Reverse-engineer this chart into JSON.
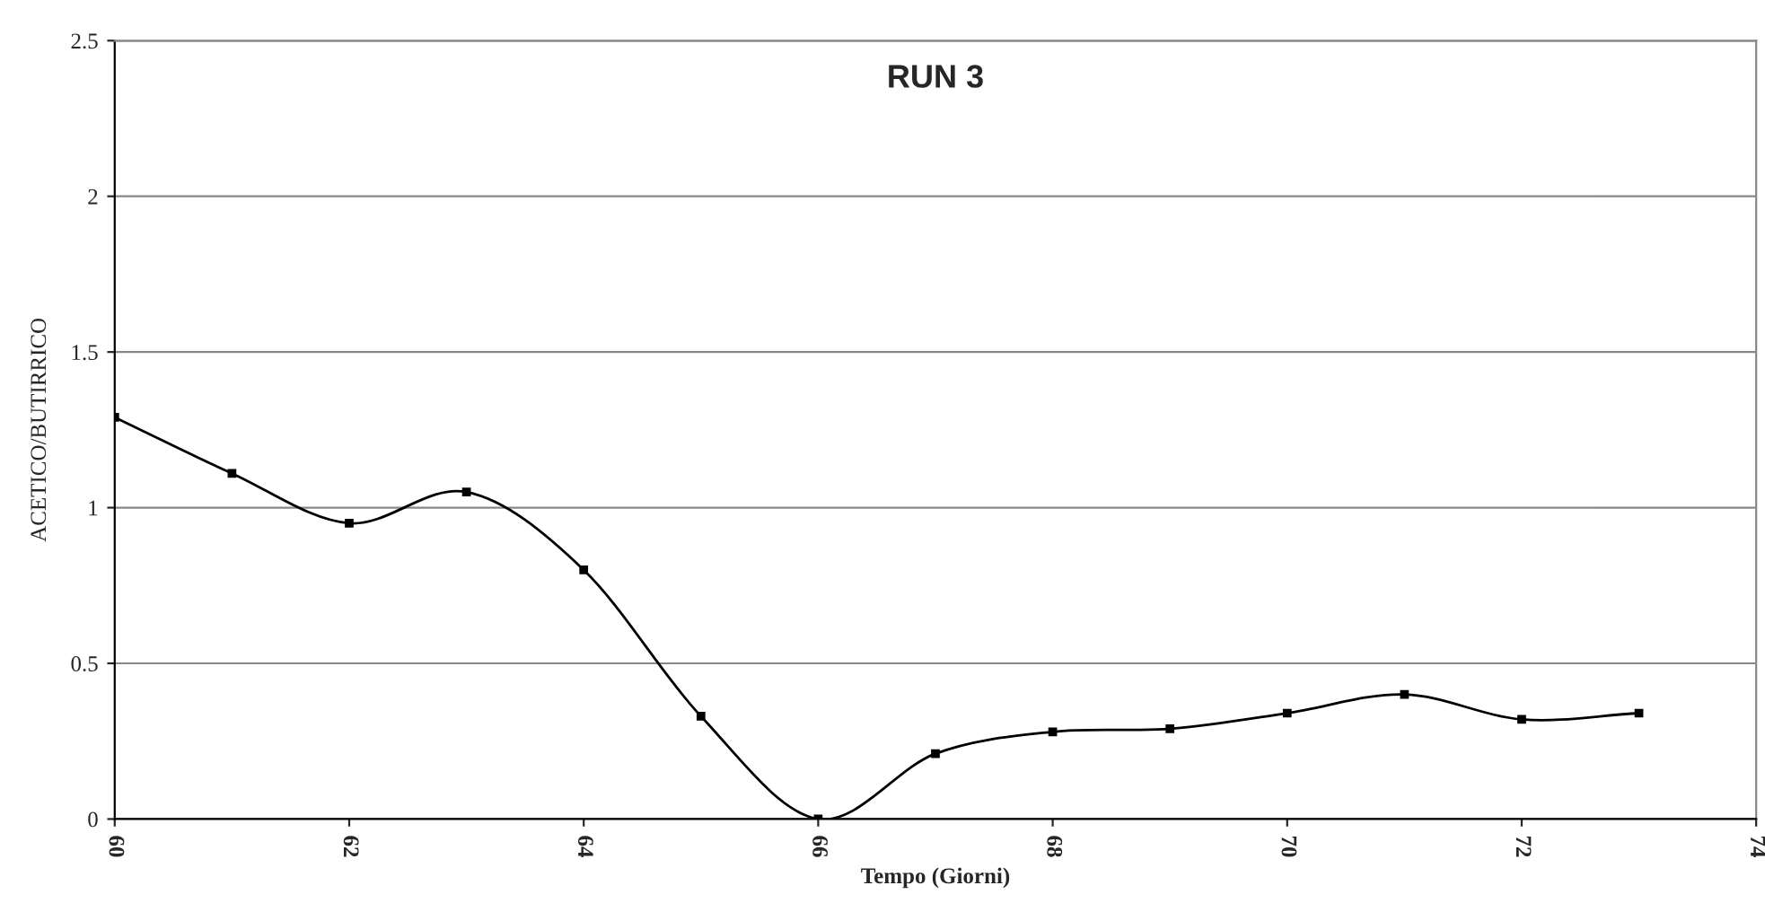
{
  "chart_data": {
    "type": "line",
    "title": "RUN 3",
    "xlabel": "Tempo (Giorni)",
    "ylabel": "ACETICO/BUTIRRICO",
    "x": [
      60,
      61,
      62,
      63,
      64,
      65,
      66,
      67,
      68,
      69,
      70,
      71,
      72,
      73
    ],
    "series": [
      {
        "color": "#000000",
        "values": [
          1.29,
          1.11,
          0.95,
          1.05,
          0.8,
          0.33,
          0.0,
          0.21,
          0.28,
          0.29,
          0.34,
          0.4,
          0.32,
          0.34
        ]
      }
    ],
    "xlim": [
      60,
      74
    ],
    "xticks": [
      60,
      62,
      64,
      66,
      68,
      70,
      72,
      74
    ],
    "ylim": [
      0,
      2.5
    ],
    "yticks": [
      0,
      0.5,
      1,
      1.5,
      2,
      2.5
    ],
    "grid": "y",
    "marker": "square",
    "line_style": "solid",
    "legend": false
  }
}
